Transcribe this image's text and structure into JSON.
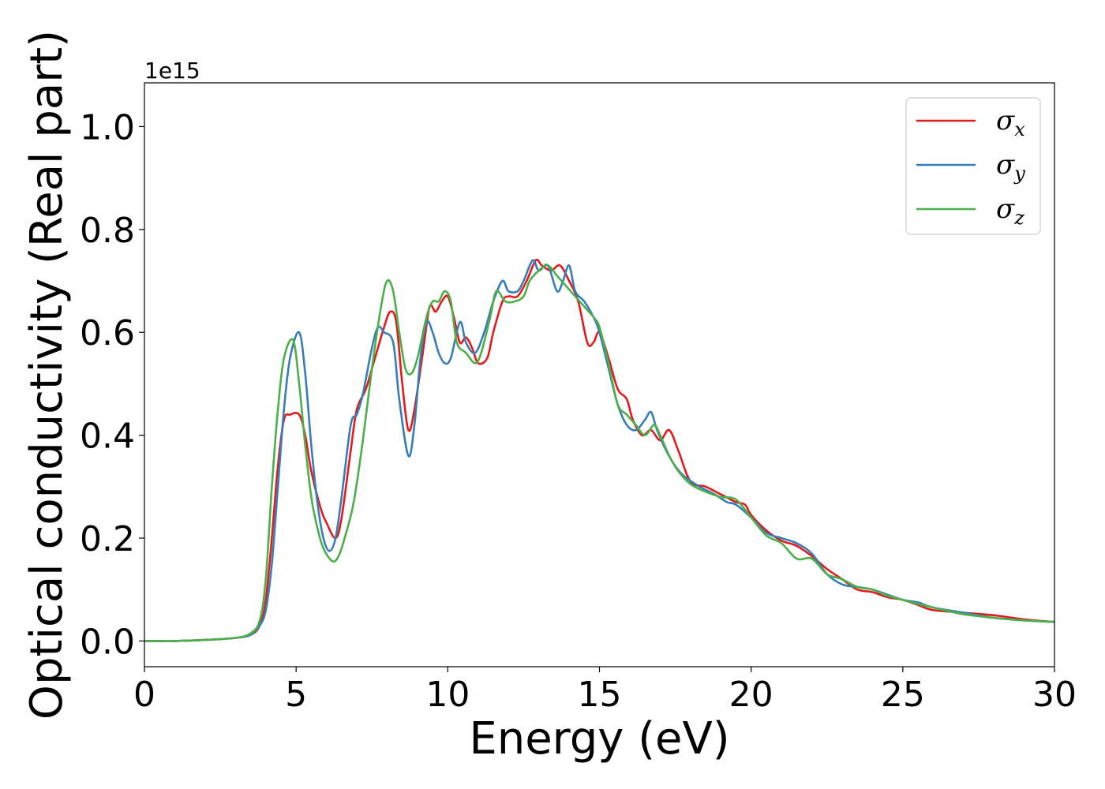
{
  "chart_data": {
    "type": "line",
    "xlabel": "Energy (eV)",
    "ylabel": "Optical conductivity (Real part)",
    "y_offset_label": "1e15",
    "xlim": [
      0,
      30
    ],
    "ylim": [
      -0.05,
      1.085
    ],
    "x_ticks": [
      0,
      5,
      10,
      15,
      20,
      25,
      30
    ],
    "x_tick_labels": [
      "0",
      "5",
      "10",
      "15",
      "20",
      "25",
      "30"
    ],
    "y_ticks": [
      0.0,
      0.2,
      0.4,
      0.6,
      0.8,
      1.0
    ],
    "y_tick_labels": [
      "0.0",
      "0.2",
      "0.4",
      "0.6",
      "0.8",
      "1.0"
    ],
    "grid": false,
    "legend_position": "top-right",
    "series": [
      {
        "name": "σx",
        "legend_symbol": "σ",
        "legend_subscript": "x",
        "color": "#e41a1c",
        "points": [
          [
            0,
            0
          ],
          [
            1,
            0
          ],
          [
            2,
            0.002
          ],
          [
            3,
            0.006
          ],
          [
            3.5,
            0.012
          ],
          [
            3.8,
            0.03
          ],
          [
            4.0,
            0.08
          ],
          [
            4.2,
            0.2
          ],
          [
            4.4,
            0.34
          ],
          [
            4.6,
            0.43
          ],
          [
            4.8,
            0.44
          ],
          [
            5.1,
            0.44
          ],
          [
            5.3,
            0.4
          ],
          [
            5.5,
            0.33
          ],
          [
            5.8,
            0.26
          ],
          [
            6.0,
            0.23
          ],
          [
            6.3,
            0.2
          ],
          [
            6.5,
            0.24
          ],
          [
            6.8,
            0.37
          ],
          [
            7.0,
            0.45
          ],
          [
            7.3,
            0.49
          ],
          [
            7.6,
            0.55
          ],
          [
            7.9,
            0.61
          ],
          [
            8.1,
            0.64
          ],
          [
            8.3,
            0.62
          ],
          [
            8.5,
            0.5
          ],
          [
            8.7,
            0.41
          ],
          [
            8.9,
            0.45
          ],
          [
            9.2,
            0.57
          ],
          [
            9.4,
            0.65
          ],
          [
            9.6,
            0.64
          ],
          [
            9.8,
            0.66
          ],
          [
            10.0,
            0.67
          ],
          [
            10.2,
            0.63
          ],
          [
            10.4,
            0.58
          ],
          [
            10.6,
            0.59
          ],
          [
            10.8,
            0.57
          ],
          [
            11.0,
            0.54
          ],
          [
            11.3,
            0.55
          ],
          [
            11.5,
            0.6
          ],
          [
            11.8,
            0.66
          ],
          [
            12.0,
            0.67
          ],
          [
            12.3,
            0.67
          ],
          [
            12.6,
            0.7
          ],
          [
            12.9,
            0.74
          ],
          [
            13.1,
            0.73
          ],
          [
            13.4,
            0.72
          ],
          [
            13.7,
            0.73
          ],
          [
            14.0,
            0.7
          ],
          [
            14.3,
            0.66
          ],
          [
            14.6,
            0.58
          ],
          [
            14.8,
            0.58
          ],
          [
            15.0,
            0.6
          ],
          [
            15.3,
            0.55
          ],
          [
            15.6,
            0.49
          ],
          [
            15.9,
            0.47
          ],
          [
            16.1,
            0.43
          ],
          [
            16.4,
            0.4
          ],
          [
            16.7,
            0.41
          ],
          [
            17.0,
            0.39
          ],
          [
            17.3,
            0.41
          ],
          [
            17.6,
            0.37
          ],
          [
            18.0,
            0.31
          ],
          [
            18.5,
            0.3
          ],
          [
            19.0,
            0.285
          ],
          [
            19.5,
            0.27
          ],
          [
            19.8,
            0.265
          ],
          [
            20.0,
            0.245
          ],
          [
            20.5,
            0.215
          ],
          [
            21.0,
            0.195
          ],
          [
            21.5,
            0.185
          ],
          [
            22.0,
            0.165
          ],
          [
            22.5,
            0.14
          ],
          [
            23.0,
            0.12
          ],
          [
            23.5,
            0.1
          ],
          [
            24.0,
            0.095
          ],
          [
            24.5,
            0.085
          ],
          [
            25.0,
            0.08
          ],
          [
            25.5,
            0.07
          ],
          [
            26.0,
            0.06
          ],
          [
            27.0,
            0.055
          ],
          [
            28.0,
            0.05
          ],
          [
            29.0,
            0.042
          ],
          [
            30.0,
            0.037
          ]
        ]
      },
      {
        "name": "σy",
        "legend_symbol": "σ",
        "legend_subscript": "y",
        "color": "#377eb8",
        "points": [
          [
            0,
            0
          ],
          [
            1,
            0
          ],
          [
            2,
            0.002
          ],
          [
            3,
            0.006
          ],
          [
            3.5,
            0.012
          ],
          [
            3.8,
            0.03
          ],
          [
            4.0,
            0.06
          ],
          [
            4.2,
            0.15
          ],
          [
            4.4,
            0.3
          ],
          [
            4.6,
            0.45
          ],
          [
            4.8,
            0.55
          ],
          [
            5.1,
            0.6
          ],
          [
            5.3,
            0.52
          ],
          [
            5.5,
            0.38
          ],
          [
            5.7,
            0.27
          ],
          [
            5.9,
            0.2
          ],
          [
            6.1,
            0.175
          ],
          [
            6.3,
            0.2
          ],
          [
            6.5,
            0.28
          ],
          [
            6.8,
            0.42
          ],
          [
            7.0,
            0.44
          ],
          [
            7.2,
            0.48
          ],
          [
            7.5,
            0.57
          ],
          [
            7.7,
            0.61
          ],
          [
            7.9,
            0.6
          ],
          [
            8.2,
            0.58
          ],
          [
            8.4,
            0.47
          ],
          [
            8.7,
            0.36
          ],
          [
            8.9,
            0.42
          ],
          [
            9.1,
            0.55
          ],
          [
            9.3,
            0.62
          ],
          [
            9.5,
            0.6
          ],
          [
            9.7,
            0.56
          ],
          [
            9.9,
            0.54
          ],
          [
            10.1,
            0.55
          ],
          [
            10.4,
            0.62
          ],
          [
            10.6,
            0.58
          ],
          [
            10.9,
            0.56
          ],
          [
            11.2,
            0.6
          ],
          [
            11.5,
            0.66
          ],
          [
            11.8,
            0.7
          ],
          [
            12.0,
            0.68
          ],
          [
            12.3,
            0.68
          ],
          [
            12.5,
            0.7
          ],
          [
            12.8,
            0.74
          ],
          [
            13.0,
            0.72
          ],
          [
            13.3,
            0.73
          ],
          [
            13.6,
            0.68
          ],
          [
            13.8,
            0.7
          ],
          [
            14.0,
            0.73
          ],
          [
            14.2,
            0.68
          ],
          [
            14.5,
            0.66
          ],
          [
            14.8,
            0.63
          ],
          [
            15.0,
            0.6
          ],
          [
            15.3,
            0.53
          ],
          [
            15.6,
            0.46
          ],
          [
            15.9,
            0.42
          ],
          [
            16.2,
            0.41
          ],
          [
            16.5,
            0.43
          ],
          [
            16.7,
            0.445
          ],
          [
            16.9,
            0.41
          ],
          [
            17.2,
            0.37
          ],
          [
            17.5,
            0.34
          ],
          [
            17.8,
            0.32
          ],
          [
            18.3,
            0.3
          ],
          [
            18.8,
            0.285
          ],
          [
            19.2,
            0.27
          ],
          [
            19.5,
            0.265
          ],
          [
            20.0,
            0.24
          ],
          [
            20.5,
            0.21
          ],
          [
            21.0,
            0.2
          ],
          [
            21.5,
            0.19
          ],
          [
            22.0,
            0.17
          ],
          [
            22.5,
            0.13
          ],
          [
            23.0,
            0.11
          ],
          [
            23.5,
            0.105
          ],
          [
            24.0,
            0.1
          ],
          [
            24.5,
            0.09
          ],
          [
            25.0,
            0.08
          ],
          [
            25.5,
            0.075
          ],
          [
            26.0,
            0.065
          ],
          [
            27.0,
            0.055
          ],
          [
            28.0,
            0.045
          ],
          [
            29.0,
            0.04
          ],
          [
            30.0,
            0.037
          ]
        ]
      },
      {
        "name": "σz",
        "legend_symbol": "σ",
        "legend_subscript": "z",
        "color": "#4daf4a",
        "points": [
          [
            0,
            0
          ],
          [
            1,
            0
          ],
          [
            2,
            0.002
          ],
          [
            3,
            0.006
          ],
          [
            3.5,
            0.015
          ],
          [
            3.8,
            0.04
          ],
          [
            4.0,
            0.12
          ],
          [
            4.2,
            0.3
          ],
          [
            4.4,
            0.45
          ],
          [
            4.6,
            0.55
          ],
          [
            4.9,
            0.585
          ],
          [
            5.1,
            0.5
          ],
          [
            5.3,
            0.38
          ],
          [
            5.5,
            0.28
          ],
          [
            5.7,
            0.22
          ],
          [
            5.9,
            0.18
          ],
          [
            6.2,
            0.155
          ],
          [
            6.4,
            0.165
          ],
          [
            6.6,
            0.2
          ],
          [
            6.9,
            0.27
          ],
          [
            7.2,
            0.39
          ],
          [
            7.5,
            0.53
          ],
          [
            7.8,
            0.65
          ],
          [
            8.0,
            0.7
          ],
          [
            8.2,
            0.68
          ],
          [
            8.4,
            0.6
          ],
          [
            8.6,
            0.53
          ],
          [
            8.8,
            0.52
          ],
          [
            9.0,
            0.55
          ],
          [
            9.3,
            0.63
          ],
          [
            9.5,
            0.66
          ],
          [
            9.7,
            0.66
          ],
          [
            9.9,
            0.68
          ],
          [
            10.1,
            0.66
          ],
          [
            10.3,
            0.58
          ],
          [
            10.6,
            0.56
          ],
          [
            10.9,
            0.54
          ],
          [
            11.1,
            0.56
          ],
          [
            11.4,
            0.63
          ],
          [
            11.6,
            0.68
          ],
          [
            11.9,
            0.66
          ],
          [
            12.2,
            0.66
          ],
          [
            12.5,
            0.67
          ],
          [
            12.7,
            0.7
          ],
          [
            13.0,
            0.72
          ],
          [
            13.3,
            0.73
          ],
          [
            13.6,
            0.71
          ],
          [
            13.9,
            0.69
          ],
          [
            14.2,
            0.67
          ],
          [
            14.5,
            0.65
          ],
          [
            14.8,
            0.63
          ],
          [
            15.0,
            0.61
          ],
          [
            15.3,
            0.54
          ],
          [
            15.6,
            0.46
          ],
          [
            15.9,
            0.44
          ],
          [
            16.2,
            0.42
          ],
          [
            16.5,
            0.4
          ],
          [
            16.8,
            0.42
          ],
          [
            17.0,
            0.4
          ],
          [
            17.3,
            0.36
          ],
          [
            17.6,
            0.33
          ],
          [
            18.0,
            0.305
          ],
          [
            18.5,
            0.29
          ],
          [
            19.0,
            0.28
          ],
          [
            19.5,
            0.275
          ],
          [
            20.0,
            0.24
          ],
          [
            20.5,
            0.205
          ],
          [
            21.0,
            0.19
          ],
          [
            21.5,
            0.16
          ],
          [
            22.0,
            0.16
          ],
          [
            22.5,
            0.13
          ],
          [
            23.0,
            0.12
          ],
          [
            23.5,
            0.105
          ],
          [
            24.0,
            0.1
          ],
          [
            24.5,
            0.088
          ],
          [
            25.0,
            0.08
          ],
          [
            25.5,
            0.072
          ],
          [
            26.0,
            0.065
          ],
          [
            27.0,
            0.052
          ],
          [
            28.0,
            0.045
          ],
          [
            29.0,
            0.04
          ],
          [
            30.0,
            0.037
          ]
        ]
      }
    ]
  }
}
